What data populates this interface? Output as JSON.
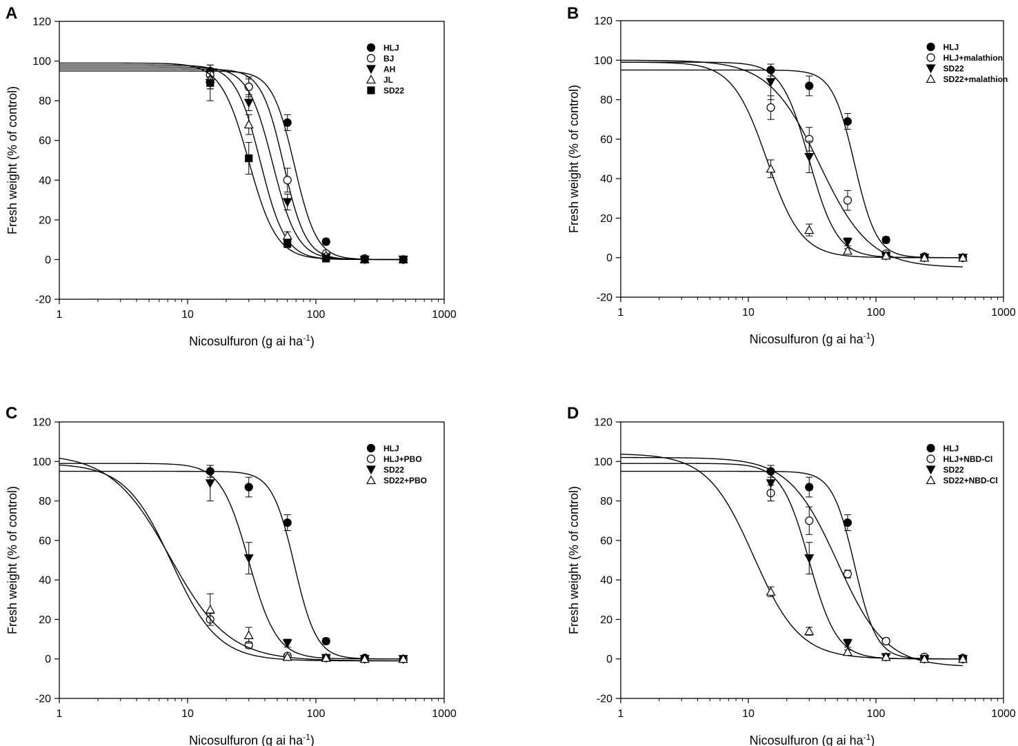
{
  "figure": {
    "shared": {
      "x_ticks": [
        "1",
        "10",
        "100",
        "1000"
      ],
      "y_ticks": [
        "-20",
        "0",
        "20",
        "40",
        "60",
        "80",
        "100",
        "120"
      ],
      "xlabel_main": "Nicosulfuron (g ai ha",
      "xlabel_sup": "-1",
      "xlabel_close": ")",
      "ylabel": "Fresh weight (% of control)"
    }
  },
  "chart_data": [
    {
      "panel": "A",
      "type": "scatter",
      "xscale": "log",
      "xlim": [
        1,
        1000
      ],
      "ylim": [
        -20,
        120
      ],
      "xlabel": "Nicosulfuron (g ai ha-1)",
      "ylabel": "Fresh weight (% of control)",
      "x": [
        15,
        30,
        60,
        120,
        240,
        480
      ],
      "legend_position": "top-right",
      "series": [
        {
          "name": "HLJ",
          "marker": "circle-filled",
          "values": [
            95,
            87,
            69,
            9,
            0.5,
            0
          ],
          "errors": [
            3,
            5,
            4,
            1.5,
            1,
            1
          ],
          "fit": {
            "top": 95,
            "bottom": 0,
            "ec50": 68,
            "slope": 5
          }
        },
        {
          "name": "BJ",
          "marker": "circle-open",
          "values": [
            93,
            87,
            40,
            3,
            0.5,
            0
          ],
          "errors": [
            3,
            4,
            6,
            1,
            1,
            1
          ],
          "fit": {
            "top": 96,
            "bottom": 0,
            "ec50": 56,
            "slope": 5
          }
        },
        {
          "name": "AH",
          "marker": "triangle-down-filled",
          "values": [
            89,
            79,
            29,
            1,
            0,
            0
          ],
          "errors": [
            3,
            4,
            4,
            1,
            1,
            1
          ],
          "fit": {
            "top": 97,
            "bottom": 0,
            "ec50": 46,
            "slope": 4.5
          }
        },
        {
          "name": "JL",
          "marker": "triangle-up-open",
          "values": [
            91,
            68,
            12,
            2,
            0,
            0
          ],
          "errors": [
            5,
            5,
            2,
            1,
            1,
            1
          ],
          "fit": {
            "top": 98,
            "bottom": 0,
            "ec50": 37,
            "slope": 4.5
          }
        },
        {
          "name": "SD22",
          "marker": "square-filled",
          "values": [
            89,
            51,
            8,
            0.5,
            0,
            0
          ],
          "errors": [
            9,
            8,
            2,
            1,
            1,
            1
          ],
          "fit": {
            "top": 99,
            "bottom": 0,
            "ec50": 30,
            "slope": 4
          }
        }
      ]
    },
    {
      "panel": "B",
      "type": "scatter",
      "xscale": "log",
      "xlim": [
        1,
        1000
      ],
      "ylim": [
        -20,
        120
      ],
      "xlabel": "Nicosulfuron (g ai ha-1)",
      "ylabel": "Fresh weight (% of control)",
      "x": [
        15,
        30,
        60,
        120,
        240,
        480
      ],
      "legend_position": "top-right",
      "series": [
        {
          "name": "HLJ",
          "marker": "circle-filled",
          "values": [
            95,
            87,
            69,
            9,
            0.5,
            0
          ],
          "errors": [
            3,
            5,
            4,
            1.5,
            1,
            1
          ],
          "fit": {
            "top": 95,
            "bottom": 0,
            "ec50": 68,
            "slope": 5
          }
        },
        {
          "name": "HLJ+malathion",
          "marker": "circle-open",
          "values": [
            76,
            60,
            29,
            2,
            0.5,
            0
          ],
          "errors": [
            6,
            6,
            5,
            1,
            1,
            1
          ],
          "fit": {
            "top": 100,
            "bottom": -5,
            "ec50": 36,
            "slope": 2.2
          }
        },
        {
          "name": "SD22",
          "marker": "triangle-down-filled",
          "values": [
            89,
            51,
            8,
            1,
            0,
            0
          ],
          "errors": [
            9,
            8,
            2,
            1,
            1,
            1
          ],
          "fit": {
            "top": 99,
            "bottom": 0,
            "ec50": 30,
            "slope": 4
          }
        },
        {
          "name": "SD22+malathion",
          "marker": "triangle-up-open",
          "values": [
            45,
            14,
            3.5,
            1,
            0,
            0
          ],
          "errors": [
            4.5,
            3,
            1,
            1,
            1,
            1
          ],
          "fit": {
            "top": 99,
            "bottom": 0,
            "ec50": 14,
            "slope": 3.2
          }
        }
      ]
    },
    {
      "panel": "C",
      "type": "scatter",
      "xscale": "log",
      "xlim": [
        1,
        1000
      ],
      "ylim": [
        -20,
        120
      ],
      "xlabel": "Nicosulfuron (g ai ha-1)",
      "ylabel": "Fresh weight (% of control)",
      "x": [
        15,
        30,
        60,
        120,
        240,
        480
      ],
      "legend_position": "top-right",
      "series": [
        {
          "name": "HLJ",
          "marker": "circle-filled",
          "values": [
            95,
            87,
            69,
            9,
            0.5,
            0
          ],
          "errors": [
            3,
            5,
            4,
            1.5,
            1,
            1
          ],
          "fit": {
            "top": 95,
            "bottom": 0,
            "ec50": 68,
            "slope": 5
          }
        },
        {
          "name": "HLJ+PBO",
          "marker": "circle-open",
          "values": [
            20,
            7,
            1.5,
            0.5,
            0,
            0
          ],
          "errors": [
            3,
            1.5,
            1,
            1,
            1,
            1
          ],
          "fit": {
            "top": 99,
            "bottom": -1,
            "ec50": 7.5,
            "slope": 2.4
          }
        },
        {
          "name": "SD22",
          "marker": "triangle-down-filled",
          "values": [
            89,
            51,
            8,
            0.5,
            0,
            0
          ],
          "errors": [
            9,
            8,
            2,
            1,
            1,
            1
          ],
          "fit": {
            "top": 99,
            "bottom": 0,
            "ec50": 30,
            "slope": 4
          }
        },
        {
          "name": "SD22+PBO",
          "marker": "triangle-up-open",
          "values": [
            25,
            12,
            1,
            0.5,
            0,
            0
          ],
          "errors": [
            8,
            4,
            1,
            1,
            1,
            1
          ],
          "fit": {
            "top": 104,
            "bottom": -1,
            "ec50": 7.3,
            "slope": 1.9
          }
        }
      ]
    },
    {
      "panel": "D",
      "type": "scatter",
      "xscale": "log",
      "xlim": [
        1,
        1000
      ],
      "ylim": [
        -20,
        120
      ],
      "xlabel": "Nicosulfuron (g ai ha-1)",
      "ylabel": "Fresh weight (% of control)",
      "x": [
        15,
        30,
        60,
        120,
        240,
        480
      ],
      "legend_position": "top-right",
      "series": [
        {
          "name": "HLJ",
          "marker": "circle-filled",
          "values": [
            95,
            87,
            69,
            9,
            0.5,
            0
          ],
          "errors": [
            3,
            5,
            4,
            1.5,
            1,
            1
          ],
          "fit": {
            "top": 95,
            "bottom": 0,
            "ec50": 68,
            "slope": 5
          }
        },
        {
          "name": "HLJ+NBD-Cl",
          "marker": "circle-open",
          "values": [
            84,
            70,
            43,
            9,
            1,
            0.5
          ],
          "errors": [
            4,
            7,
            2,
            1,
            1,
            1
          ],
          "fit": {
            "top": 102,
            "bottom": -4,
            "ec50": 50,
            "slope": 2.3
          }
        },
        {
          "name": "SD22",
          "marker": "triangle-down-filled",
          "values": [
            89,
            51,
            8,
            1,
            0,
            0
          ],
          "errors": [
            9,
            8,
            2,
            1,
            1,
            1
          ],
          "fit": {
            "top": 99,
            "bottom": 0,
            "ec50": 30,
            "slope": 4
          }
        },
        {
          "name": "SD22+NBD-Cl",
          "marker": "triangle-up-open",
          "values": [
            34,
            14,
            3.5,
            1,
            0,
            0
          ],
          "errors": [
            2.5,
            2,
            1,
            1,
            1,
            1
          ],
          "fit": {
            "top": 104,
            "bottom": 0,
            "ec50": 11,
            "slope": 2.4
          }
        }
      ]
    }
  ]
}
